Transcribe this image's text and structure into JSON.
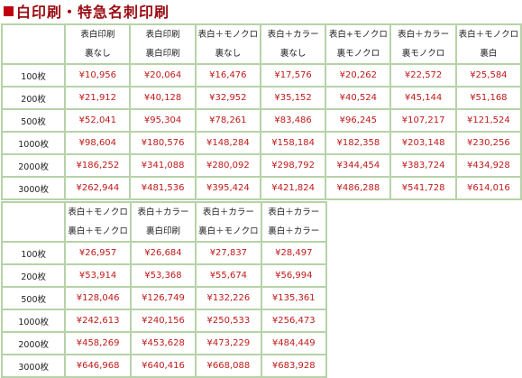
{
  "page": {
    "title": "白印刷・特急名刺印刷"
  },
  "table1": {
    "headers": [
      [
        "表白印刷",
        "裏なし"
      ],
      [
        "表白印刷",
        "裏白印刷"
      ],
      [
        "表白＋モノクロ",
        "裏なし"
      ],
      [
        "表白＋カラー",
        "裏なし"
      ],
      [
        "表白+モノクロ",
        "裏モノクロ"
      ],
      [
        "表白＋カラー",
        "裏モノクロ"
      ],
      [
        "表白＋モノクロ",
        "裏白"
      ]
    ],
    "rows": [
      {
        "label": "100枚",
        "prices": [
          "¥10,956",
          "¥20,064",
          "¥16,476",
          "¥17,576",
          "¥20,262",
          "¥22,572",
          "¥25,584"
        ]
      },
      {
        "label": "200枚",
        "prices": [
          "¥21,912",
          "¥40,128",
          "¥32,952",
          "¥35,152",
          "¥40,524",
          "¥45,144",
          "¥51,168"
        ]
      },
      {
        "label": "500枚",
        "prices": [
          "¥52,041",
          "¥95,304",
          "¥78,261",
          "¥83,486",
          "¥96,245",
          "¥107,217",
          "¥121,524"
        ]
      },
      {
        "label": "1000枚",
        "prices": [
          "¥98,604",
          "¥180,576",
          "¥148,284",
          "¥158,184",
          "¥182,358",
          "¥203,148",
          "¥230,256"
        ]
      },
      {
        "label": "2000枚",
        "prices": [
          "¥186,252",
          "¥341,088",
          "¥280,092",
          "¥298,792",
          "¥344,454",
          "¥383,724",
          "¥434,928"
        ]
      },
      {
        "label": "3000枚",
        "prices": [
          "¥262,944",
          "¥481,536",
          "¥395,424",
          "¥421,824",
          "¥486,288",
          "¥541,728",
          "¥614,016"
        ]
      }
    ]
  },
  "table2": {
    "headers": [
      [
        "表白＋モノクロ",
        "裏白＋モノクロ"
      ],
      [
        "表白＋カラー",
        "裏白印刷"
      ],
      [
        "表白＋カラー",
        "裏白＋モノクロ"
      ],
      [
        "表白＋カラー",
        "裏白＋カラー"
      ]
    ],
    "rows": [
      {
        "label": "100枚",
        "prices": [
          "¥26,957",
          "¥26,684",
          "¥27,837",
          "¥28,497"
        ]
      },
      {
        "label": "200枚",
        "prices": [
          "¥53,914",
          "¥53,368",
          "¥55,674",
          "¥56,994"
        ]
      },
      {
        "label": "500枚",
        "prices": [
          "¥128,046",
          "¥126,749",
          "¥132,226",
          "¥135,361"
        ]
      },
      {
        "label": "1000枚",
        "prices": [
          "¥242,613",
          "¥240,156",
          "¥250,533",
          "¥256,473"
        ]
      },
      {
        "label": "2000枚",
        "prices": [
          "¥458,269",
          "¥453,628",
          "¥473,229",
          "¥484,449"
        ]
      },
      {
        "label": "3000枚",
        "prices": [
          "¥646,968",
          "¥640,416",
          "¥668,088",
          "¥683,928"
        ]
      }
    ]
  }
}
